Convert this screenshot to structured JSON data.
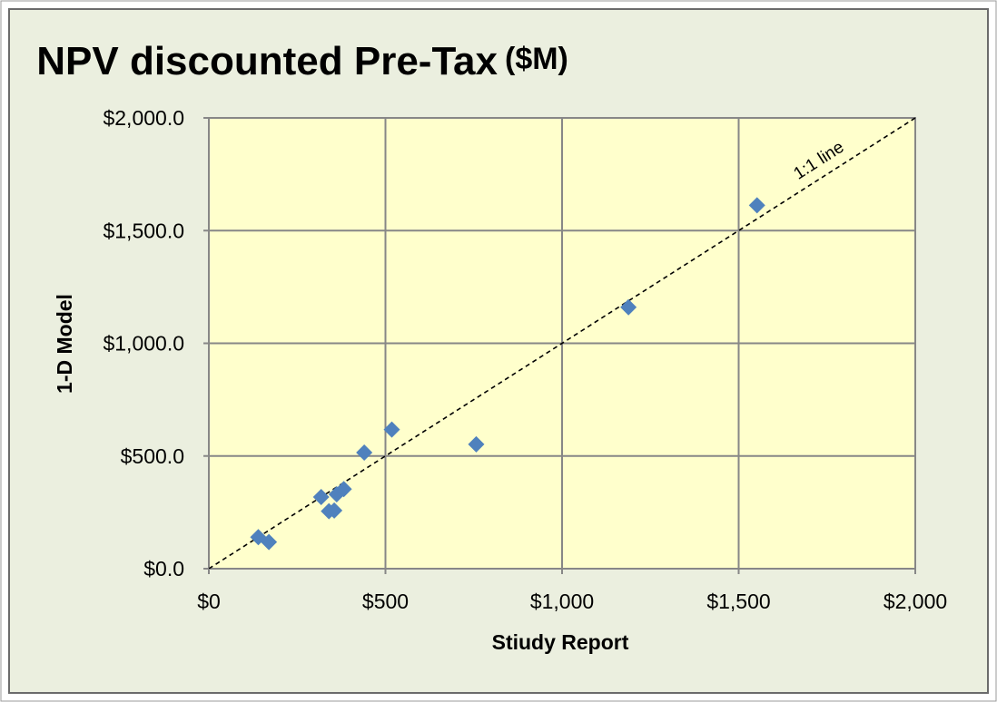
{
  "chart_data": {
    "type": "scatter",
    "title": "NPV discounted Pre-Tax",
    "title_unit": "($M)",
    "xlabel": "Stiudy Report",
    "ylabel": "1-D Model",
    "xlim": [
      0,
      2000
    ],
    "ylim": [
      0,
      2000
    ],
    "x_ticks": [
      0,
      500,
      1000,
      1500,
      2000
    ],
    "y_ticks": [
      0,
      500,
      1000,
      1500,
      2000
    ],
    "x_tick_labels": [
      "$0",
      "$500",
      "$1,000",
      "$1,500",
      "$2,000"
    ],
    "y_tick_labels": [
      "$0.0",
      "$500.0",
      "$1,000.0",
      "$1,500.0",
      "$2,000.0"
    ],
    "grid": true,
    "reference_line": {
      "label": "1:1 line",
      "from": [
        0,
        0
      ],
      "to": [
        2000,
        2000
      ],
      "style": "dashed"
    },
    "series": [
      {
        "marker": "diamond",
        "color": "#4f81bd",
        "points": [
          {
            "x": 140,
            "y": 140
          },
          {
            "x": 170,
            "y": 118
          },
          {
            "x": 318,
            "y": 318
          },
          {
            "x": 340,
            "y": 255
          },
          {
            "x": 355,
            "y": 258
          },
          {
            "x": 362,
            "y": 330
          },
          {
            "x": 382,
            "y": 353
          },
          {
            "x": 440,
            "y": 515
          },
          {
            "x": 518,
            "y": 617
          },
          {
            "x": 757,
            "y": 552
          },
          {
            "x": 1188,
            "y": 1160
          },
          {
            "x": 1552,
            "y": 1612
          }
        ]
      }
    ],
    "colors": {
      "outer_background": "#ebefdf",
      "plot_background": "#ffffcc",
      "gridline": "#878787",
      "marker": "#4f81bd",
      "reference_line": "#000000"
    }
  }
}
